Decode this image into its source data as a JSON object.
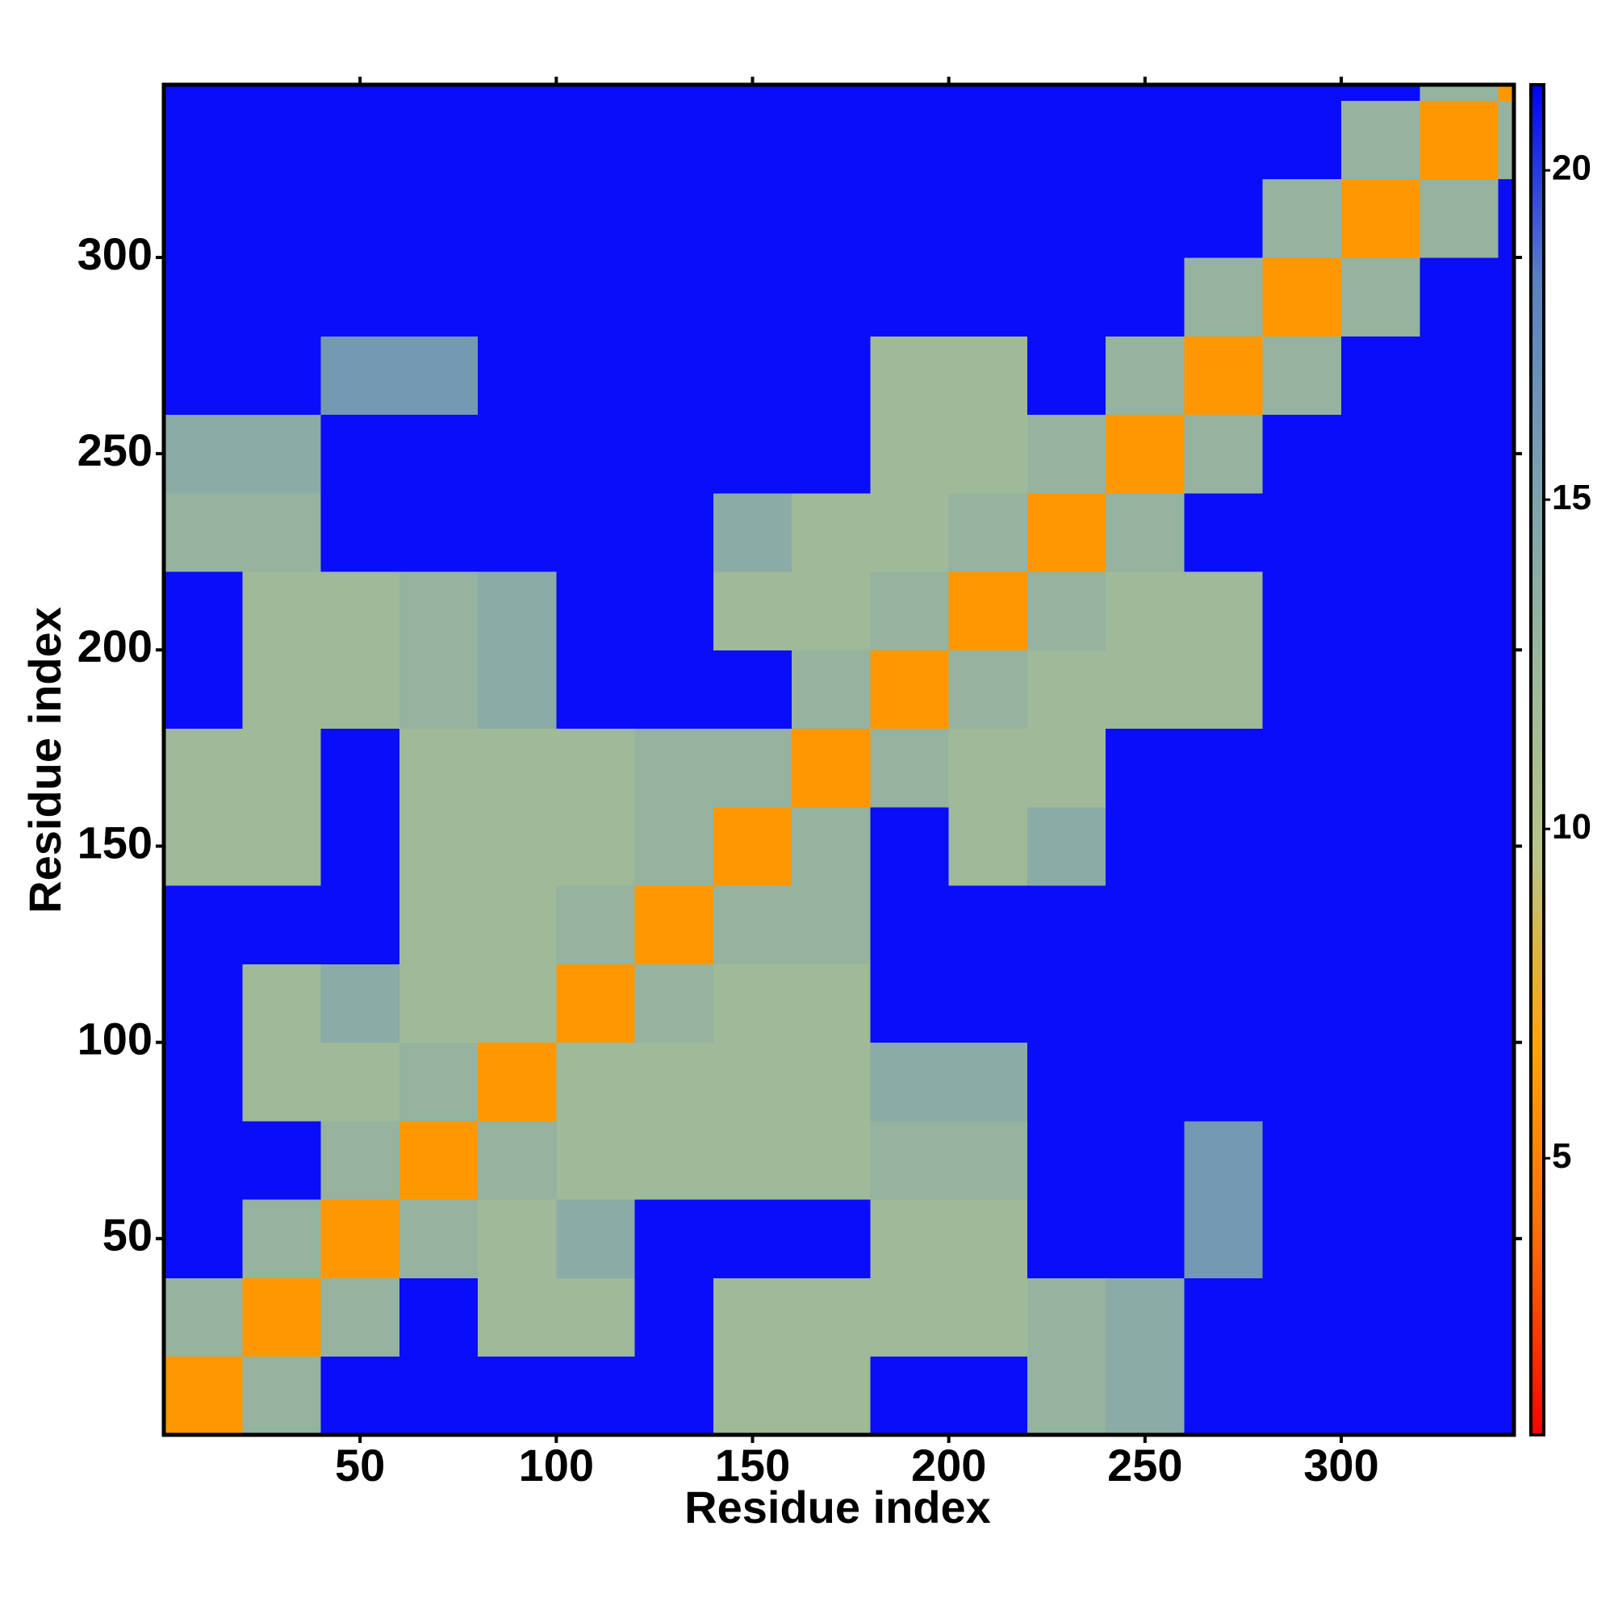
{
  "chart_data": {
    "type": "heatmap",
    "xlabel": "Residue index",
    "ylabel": "Residue index",
    "bins": [
      0,
      20,
      40,
      60,
      80,
      100,
      120,
      140,
      160,
      180,
      200,
      220,
      240,
      260,
      280,
      300,
      320,
      340,
      344
    ],
    "z": [
      [
        6,
        13,
        21,
        21,
        21,
        21,
        21,
        12,
        12,
        21,
        21,
        13,
        14,
        21,
        21,
        21,
        21,
        21
      ],
      [
        13,
        6,
        13,
        21,
        12,
        12,
        21,
        12,
        12,
        12,
        12,
        13,
        14,
        21,
        21,
        21,
        21,
        21
      ],
      [
        21,
        13,
        6,
        13,
        12,
        14,
        21,
        21,
        21,
        12,
        12,
        21,
        21,
        16,
        21,
        21,
        21,
        21
      ],
      [
        21,
        21,
        13,
        6,
        13,
        12,
        12,
        12,
        12,
        13,
        13,
        21,
        21,
        16,
        21,
        21,
        21,
        21
      ],
      [
        21,
        12,
        12,
        13,
        6,
        12,
        12,
        12,
        12,
        14,
        14,
        21,
        21,
        21,
        21,
        21,
        21,
        21
      ],
      [
        21,
        12,
        14,
        12,
        12,
        6,
        13,
        12,
        12,
        21,
        21,
        21,
        21,
        21,
        21,
        21,
        21,
        21
      ],
      [
        21,
        21,
        21,
        12,
        12,
        13,
        6,
        13,
        13,
        21,
        21,
        21,
        21,
        21,
        21,
        21,
        21,
        21
      ],
      [
        12,
        12,
        21,
        12,
        12,
        12,
        13,
        6,
        13,
        21,
        12,
        14,
        21,
        21,
        21,
        21,
        21,
        21
      ],
      [
        12,
        12,
        21,
        12,
        12,
        12,
        13,
        13,
        6,
        13,
        12,
        12,
        21,
        21,
        21,
        21,
        21,
        21
      ],
      [
        21,
        12,
        12,
        13,
        14,
        21,
        21,
        21,
        13,
        6,
        13,
        12,
        12,
        12,
        21,
        21,
        21,
        21
      ],
      [
        21,
        12,
        12,
        13,
        14,
        21,
        21,
        12,
        12,
        13,
        6,
        13,
        12,
        12,
        21,
        21,
        21,
        21
      ],
      [
        13,
        13,
        21,
        21,
        21,
        21,
        21,
        14,
        12,
        12,
        13,
        6,
        13,
        21,
        21,
        21,
        21,
        21
      ],
      [
        14,
        14,
        21,
        21,
        21,
        21,
        21,
        21,
        21,
        12,
        12,
        13,
        6,
        13,
        21,
        21,
        21,
        21
      ],
      [
        21,
        21,
        16,
        16,
        21,
        21,
        21,
        21,
        21,
        12,
        12,
        21,
        13,
        6,
        13,
        21,
        21,
        21
      ],
      [
        21,
        21,
        21,
        21,
        21,
        21,
        21,
        21,
        21,
        21,
        21,
        21,
        21,
        13,
        6,
        13,
        21,
        21
      ],
      [
        21,
        21,
        21,
        21,
        21,
        21,
        21,
        21,
        21,
        21,
        21,
        21,
        21,
        21,
        13,
        6,
        13,
        21
      ],
      [
        21,
        21,
        21,
        21,
        21,
        21,
        21,
        21,
        21,
        21,
        21,
        21,
        21,
        21,
        21,
        13,
        6,
        13
      ],
      [
        21,
        21,
        21,
        21,
        21,
        21,
        21,
        21,
        21,
        21,
        21,
        21,
        21,
        21,
        21,
        21,
        13,
        6
      ]
    ],
    "xlim": [
      0,
      344
    ],
    "ylim": [
      0,
      344
    ],
    "xticks": [
      50,
      100,
      150,
      200,
      250,
      300
    ],
    "yticks": [
      50,
      100,
      150,
      200,
      250,
      300
    ],
    "zlim": [
      0.8,
      21.3
    ],
    "zticks": [
      5,
      10,
      15,
      20
    ],
    "colors": [
      "#ff0000",
      "#ff6a00",
      "#ffa500",
      "#b8c48a",
      "#9ab79c",
      "#7a9fb0",
      "#5a7fc0",
      "#0000ff"
    ]
  }
}
